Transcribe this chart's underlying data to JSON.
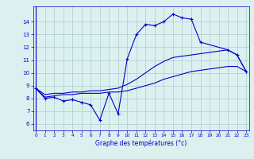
{
  "xlabel": "Graphe des températures (°c)",
  "bg_color": "#ddf0f0",
  "plot_bg": "#ddf0f0",
  "line_color": "#0000cc",
  "grid_color": "#aacccc",
  "hours": [
    0,
    1,
    2,
    3,
    4,
    5,
    6,
    7,
    8,
    9,
    10,
    11,
    12,
    13,
    14,
    15,
    16,
    17,
    18,
    19,
    20,
    21,
    22,
    23
  ],
  "line1": [
    8.8,
    8.0,
    8.1,
    7.8,
    7.9,
    7.7,
    7.5,
    6.3,
    8.4,
    6.8,
    11.1,
    13.0,
    13.8,
    13.7,
    14.0,
    14.6,
    14.3,
    14.2,
    12.4,
    null,
    null,
    11.8,
    11.4,
    10.1
  ],
  "line2": [
    8.8,
    8.1,
    8.2,
    8.3,
    8.3,
    8.4,
    8.4,
    8.4,
    8.5,
    8.5,
    8.6,
    8.8,
    9.0,
    9.2,
    9.5,
    9.7,
    9.9,
    10.1,
    10.2,
    10.3,
    10.4,
    10.5,
    10.5,
    10.1
  ],
  "line3": [
    8.8,
    8.3,
    8.4,
    8.4,
    8.5,
    8.5,
    8.6,
    8.6,
    8.7,
    8.8,
    9.1,
    9.5,
    10.0,
    10.5,
    10.9,
    11.2,
    11.3,
    11.4,
    11.5,
    11.6,
    11.7,
    11.8,
    11.4,
    10.1
  ],
  "ylim": [
    5.5,
    15.2
  ],
  "yticks": [
    6,
    7,
    8,
    9,
    10,
    11,
    12,
    13,
    14
  ],
  "xlim": [
    -0.3,
    23.3
  ],
  "xticks": [
    0,
    1,
    2,
    3,
    4,
    5,
    6,
    7,
    8,
    9,
    10,
    11,
    12,
    13,
    14,
    15,
    16,
    17,
    18,
    19,
    20,
    21,
    22,
    23
  ]
}
